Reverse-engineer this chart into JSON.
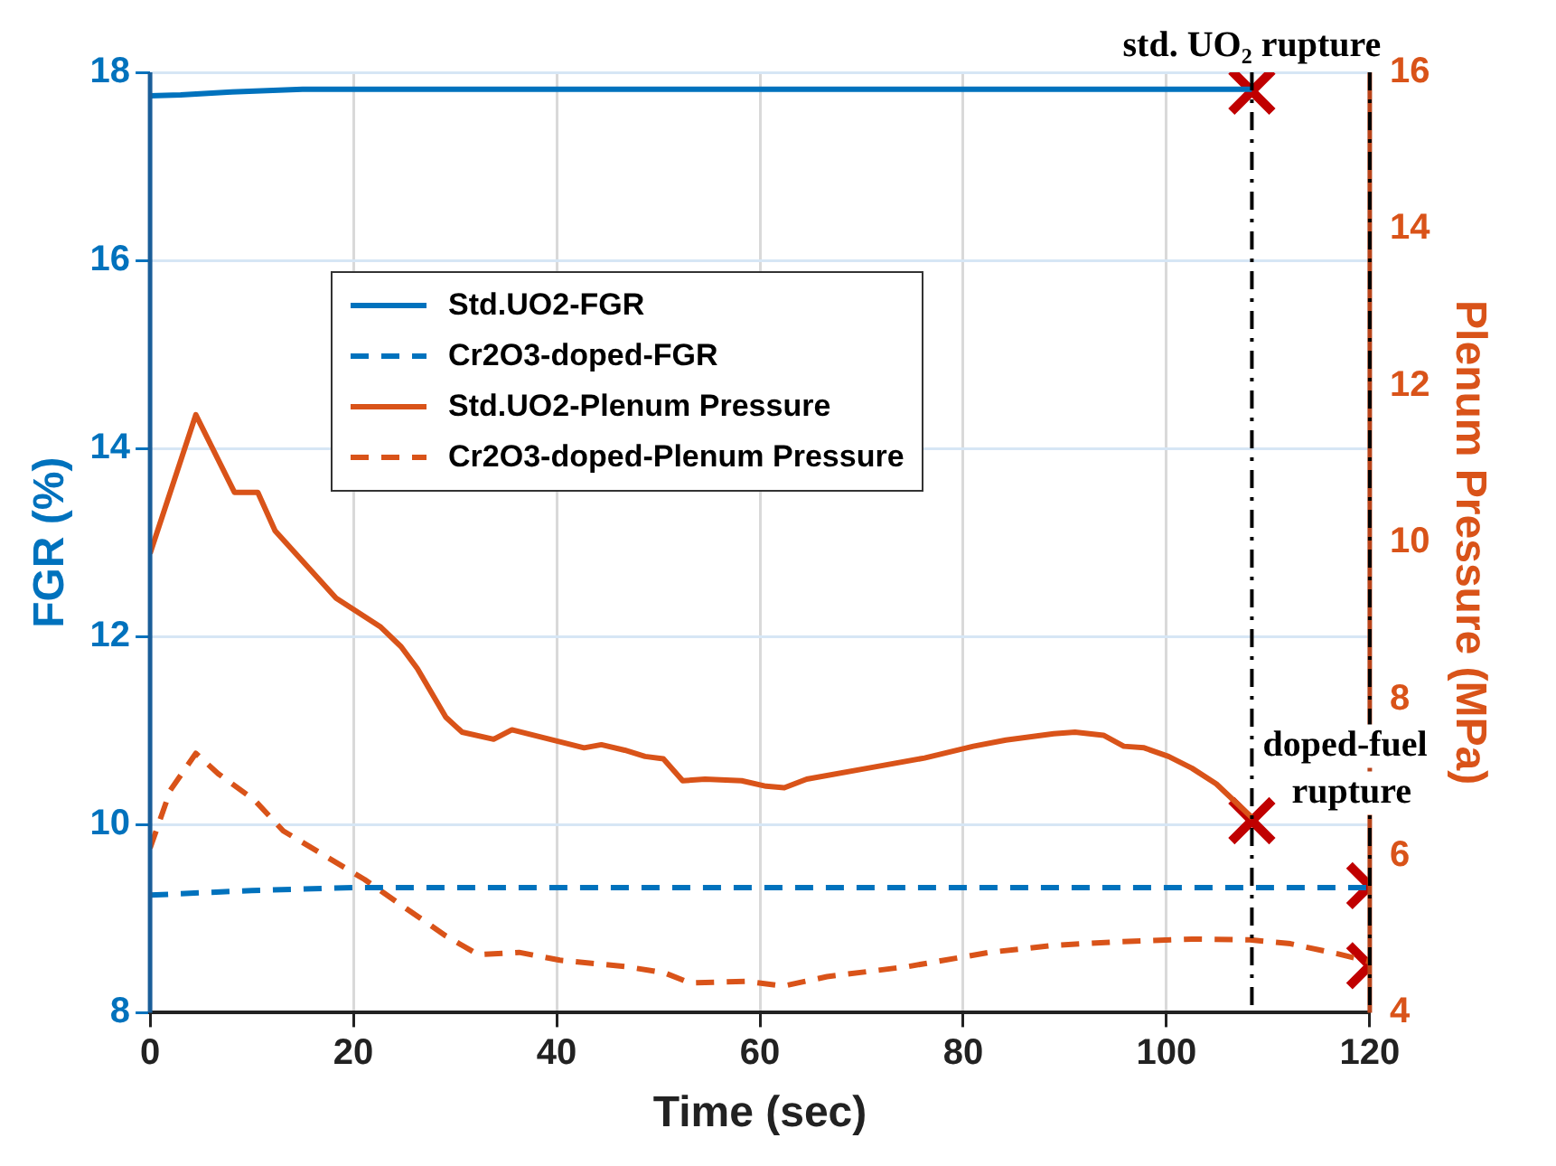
{
  "chart_data": {
    "type": "line",
    "xlabel": "Time (sec)",
    "ylabel": "FGR (%)",
    "y2label": "Plenum Pressure (MPa)",
    "xlim": [
      0,
      120
    ],
    "xticks": [
      0,
      20,
      40,
      60,
      80,
      100,
      120
    ],
    "ylim": [
      8,
      18
    ],
    "yticks": [
      8,
      10,
      12,
      14,
      16,
      18
    ],
    "y2lim": [
      4,
      16
    ],
    "y2ticks": [
      4,
      6,
      8,
      10,
      12,
      14,
      16
    ],
    "grid": true,
    "legend": "top left",
    "marker": "none",
    "series": [
      {
        "name": "Std.UO2-FGR",
        "color": "#0072bd",
        "line_style": "solid",
        "x": [
          0,
          3,
          8,
          15,
          108.4
        ],
        "values": [
          17.75,
          17.76,
          17.79,
          17.82,
          17.82
        ]
      },
      {
        "name": "Cr2O3-doped-FGR",
        "color": "#0072bd",
        "line_style": "dashed",
        "x": [
          0,
          10,
          20,
          120
        ],
        "values": [
          9.25,
          9.3,
          9.33,
          9.33
        ]
      },
      {
        "name": "Std.UO2-Plenum Pressure",
        "color": "#d95319",
        "line_style": "solid",
        "axis": "y2",
        "x": [
          0,
          4.5,
          8.3,
          10.6,
          12.3,
          18.3,
          22.7,
          24.7,
          26.3,
          29.1,
          30.7,
          33.8,
          35.6,
          42.7,
          44.4,
          46.7,
          48.7,
          50.5,
          52.4,
          54.6,
          58.2,
          60.6,
          62.4,
          64.6,
          70.6,
          76.2,
          81,
          84.2,
          88.9,
          91,
          93.8,
          95.8,
          97.8,
          100.2,
          102.5,
          104.9,
          108.4
        ],
        "values": [
          9.86,
          11.63,
          10.64,
          10.64,
          10.15,
          9.29,
          8.92,
          8.67,
          8.39,
          7.77,
          7.58,
          7.49,
          7.61,
          7.38,
          7.42,
          7.35,
          7.27,
          7.24,
          6.96,
          6.98,
          6.96,
          6.89,
          6.87,
          6.98,
          7.12,
          7.25,
          7.4,
          7.48,
          7.56,
          7.58,
          7.54,
          7.4,
          7.38,
          7.27,
          7.12,
          6.92,
          6.49
        ]
      },
      {
        "name": "Cr2O3-doped-Plenum Pressure",
        "color": "#d95319",
        "line_style": "dashed",
        "axis": "y2",
        "x": [
          0,
          2,
          4.5,
          6.7,
          10.3,
          13.1,
          21.1,
          24.3,
          29.1,
          32.3,
          36.3,
          40.3,
          46.7,
          50.6,
          53.1,
          58.6,
          62.3,
          66.6,
          74.6,
          82.6,
          88.9,
          94.5,
          102.5,
          108.2,
          112.2,
          116.9,
          120
        ],
        "values": [
          6.1,
          6.84,
          7.31,
          7.05,
          6.71,
          6.32,
          5.7,
          5.41,
          4.98,
          4.74,
          4.77,
          4.67,
          4.59,
          4.51,
          4.38,
          4.4,
          4.34,
          4.46,
          4.59,
          4.77,
          4.86,
          4.9,
          4.94,
          4.93,
          4.88,
          4.75,
          4.65
        ]
      },
      {
        "type": "scatter",
        "color": "#c00000",
        "marker": "cross",
        "x": [
          108.4,
          120
        ],
        "values": [
          17.8,
          9.35
        ]
      },
      {
        "type": "scatter",
        "color": "#c00000",
        "marker": "cross",
        "axis": "y2",
        "x": [
          108.4,
          120
        ],
        "values": [
          6.45,
          4.6
        ]
      }
    ],
    "ref_lines": [
      {
        "axis": "x",
        "value": 108.4,
        "label": "std. UO₂ rupture",
        "color": "#000000",
        "line_style": "dashdot"
      },
      {
        "axis": "x",
        "value": 120,
        "label": "doped-fuel rupture",
        "color": "#000000",
        "line_style": "dashdot"
      }
    ]
  }
}
